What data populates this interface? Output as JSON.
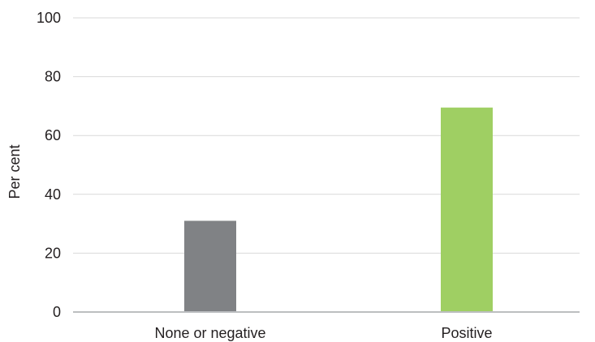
{
  "chart_data": {
    "type": "bar",
    "categories": [
      "None or negative",
      "Positive"
    ],
    "values": [
      31,
      69.5
    ],
    "title": "",
    "xlabel": "",
    "ylabel": "Per cent",
    "ylim": [
      0,
      100
    ],
    "yticks": [
      "0",
      "20",
      "40",
      "60",
      "80",
      "100"
    ],
    "grid": true,
    "bar_colors": [
      "#808285",
      "#9fcf63"
    ],
    "grid_color": "#d9d9d9",
    "axis_color": "#bcbec0"
  }
}
